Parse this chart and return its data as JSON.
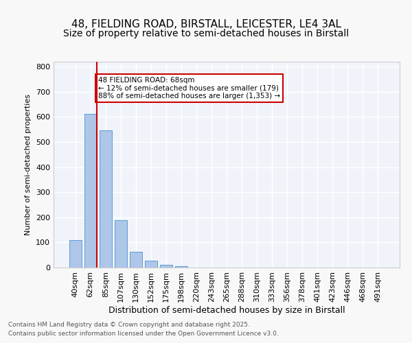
{
  "title1": "48, FIELDING ROAD, BIRSTALL, LEICESTER, LE4 3AL",
  "title2": "Size of property relative to semi-detached houses in Birstall",
  "xlabel": "Distribution of semi-detached houses by size in Birstall",
  "ylabel": "Number of semi-detached properties",
  "bar_labels": [
    "40sqm",
    "62sqm",
    "85sqm",
    "107sqm",
    "130sqm",
    "152sqm",
    "175sqm",
    "198sqm",
    "220sqm",
    "243sqm",
    "265sqm",
    "288sqm",
    "310sqm",
    "333sqm",
    "356sqm",
    "378sqm",
    "401sqm",
    "423sqm",
    "446sqm",
    "468sqm",
    "491sqm"
  ],
  "bar_values": [
    108,
    613,
    547,
    188,
    63,
    26,
    11,
    5,
    0,
    0,
    0,
    0,
    0,
    0,
    0,
    0,
    0,
    0,
    0,
    0,
    0
  ],
  "bar_color": "#aec6e8",
  "bar_edge_color": "#5b9bd5",
  "property_line_x": 1,
  "property_sqm": 68,
  "annotation_title": "48 FIELDING ROAD: 68sqm",
  "annotation_line1": "← 12% of semi-detached houses are smaller (179)",
  "annotation_line2": "88% of semi-detached houses are larger (1,353) →",
  "vline_color": "#cc0000",
  "annotation_box_color": "#cc0000",
  "ylim": [
    0,
    820
  ],
  "yticks": [
    0,
    100,
    200,
    300,
    400,
    500,
    600,
    700,
    800
  ],
  "background_color": "#f0f4fa",
  "footer1": "Contains HM Land Registry data © Crown copyright and database right 2025.",
  "footer2": "Contains public sector information licensed under the Open Government Licence v3.0.",
  "grid_color": "#ffffff",
  "title_fontsize": 11,
  "subtitle_fontsize": 10
}
